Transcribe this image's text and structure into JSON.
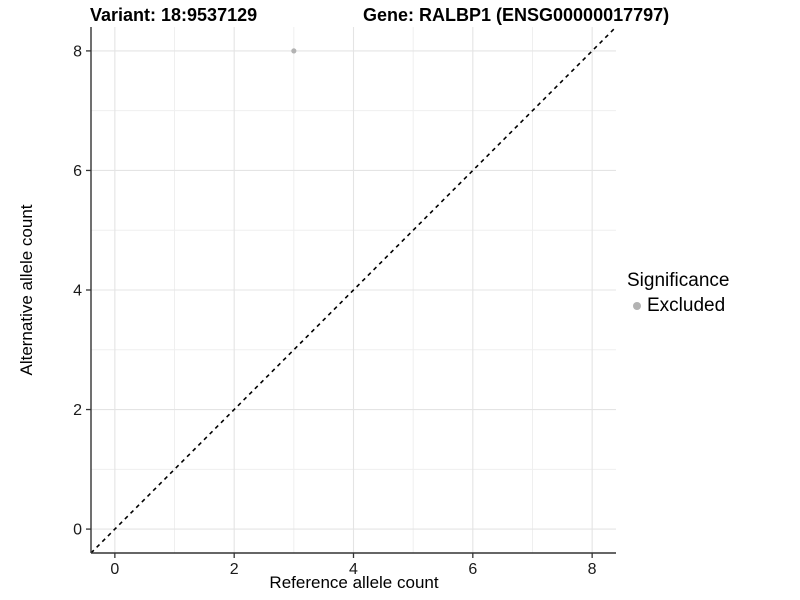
{
  "chart_data": {
    "type": "scatter",
    "title_left": "Variant: 18:9537129",
    "title_right": "Gene: RALBP1 (ENSG00000017797)",
    "xlabel": "Reference allele count",
    "ylabel": "Alternative allele count",
    "xlim": [
      -0.4,
      8.4
    ],
    "ylim": [
      -0.4,
      8.4
    ],
    "x_ticks": [
      0,
      2,
      4,
      6,
      8
    ],
    "y_ticks": [
      0,
      2,
      4,
      6,
      8
    ],
    "x_minor_gridlines": [
      1,
      3,
      5,
      7
    ],
    "y_minor_gridlines": [
      1,
      3,
      5,
      7
    ],
    "grid": true,
    "points": [
      {
        "x": 3,
        "y": 8,
        "series": "Excluded"
      }
    ],
    "reference_line": {
      "type": "identity",
      "from": [
        -0.4,
        -0.4
      ],
      "to": [
        8.4,
        8.4
      ],
      "style": "dashed"
    },
    "legend": {
      "title": "Significance",
      "position": "right",
      "items": [
        {
          "label": "Excluded",
          "color": "#b3b3b3"
        }
      ]
    }
  },
  "colors": {
    "background": "#ffffff",
    "major_gridline": "#e4e4e4",
    "minor_gridline": "#efefef",
    "axis_line": "#333333",
    "tick_label": "#1a1a1a",
    "reference_line": "#000000",
    "excluded_point": "#b3b3b3"
  }
}
